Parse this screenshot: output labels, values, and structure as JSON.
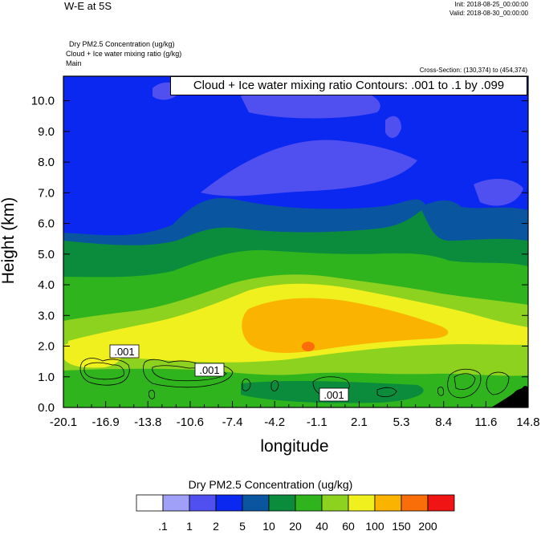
{
  "header": {
    "title": "W-E at 5S",
    "init": "Init: 2018-08-25_00:00:00",
    "valid": "Valid: 2018-08-30_00:00:00"
  },
  "fields": {
    "field1": "Dry PM2.5 Concentration   (ug/kg)",
    "field2": "Cloud + Ice water mixing ratio   (g/kg)",
    "field3": "Main"
  },
  "cross_section": "Cross-Section: (130,374) to (454,374)",
  "contour_label": "Cloud + Ice water mixing ratio Contours: .001 to .1 by .099",
  "colorbar": {
    "title": "Dry PM2.5 Concentration  (ug/kg)",
    "labels": [
      ".1",
      "1",
      "2",
      "5",
      "10",
      "20",
      "40",
      "60",
      "100",
      "150",
      "200"
    ],
    "colors": [
      "#ffffff",
      "#a0a0f8",
      "#5050f0",
      "#0b28f0",
      "#0a55a0",
      "#0a8c3c",
      "#2fb41e",
      "#8cd21e",
      "#f0f01e",
      "#fab400",
      "#fa6e0a",
      "#f01414"
    ]
  },
  "chart_data": {
    "type": "heatmap",
    "xlabel": "longitude",
    "ylabel": "Height (km)",
    "x_ticks": [
      "-20.1",
      "-16.9",
      "-13.8",
      "-10.6",
      "-7.4",
      "-4.2",
      "-1.1",
      "2.1",
      "5.3",
      "8.4",
      "11.6",
      "14.8"
    ],
    "y_ticks": [
      "0.0",
      "1.0",
      "2.0",
      "3.0",
      "4.0",
      "5.0",
      "6.0",
      "7.0",
      "8.0",
      "9.0",
      "10.0"
    ],
    "xlim": [
      -20.1,
      14.8
    ],
    "ylim": [
      0,
      10.8
    ],
    "contour_labels": [
      ".001",
      ".001",
      ".001"
    ]
  }
}
